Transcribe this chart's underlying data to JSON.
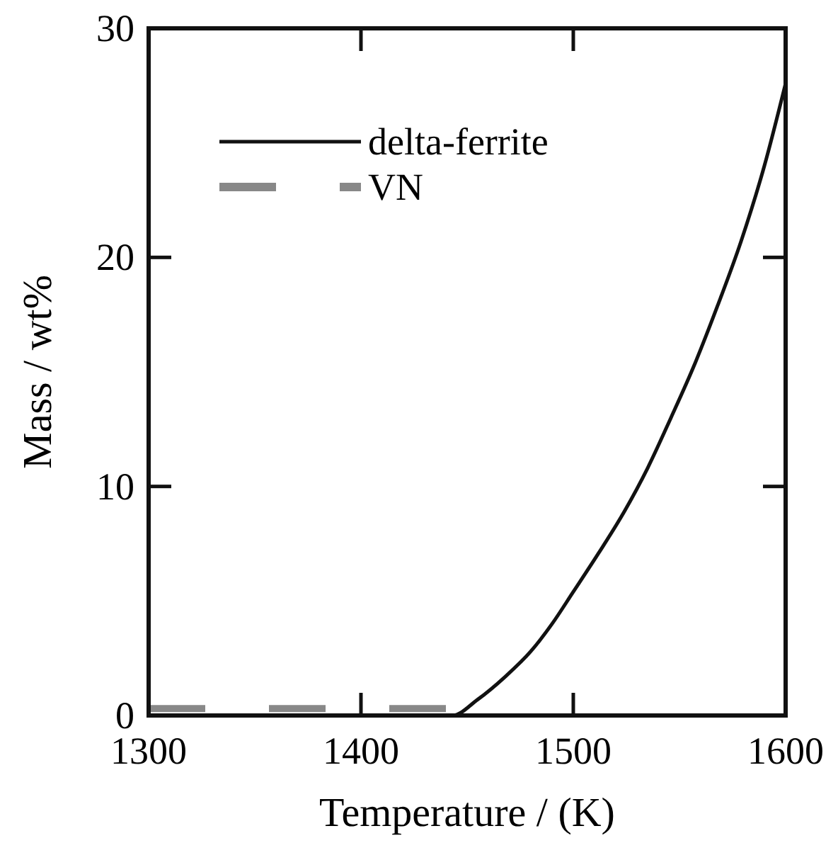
{
  "chart_data": {
    "type": "line",
    "xlabel": "Temperature / (K)",
    "ylabel": "Mass / wt%",
    "xlim": [
      1300,
      1600
    ],
    "xticks": [
      1300,
      1400,
      1500,
      1600
    ],
    "ylim": [
      0,
      30
    ],
    "yticks": [
      0,
      10,
      20,
      30
    ],
    "legend": "top left",
    "grid": false,
    "series": [
      {
        "name": "delta-ferrite",
        "color": "#111111",
        "line_style": "solid",
        "x": [
          1300,
          1443,
          1455,
          1468,
          1480,
          1490,
          1500,
          1512,
          1524,
          1535,
          1546,
          1557,
          1568,
          1579,
          1590,
          1600
        ],
        "values": [
          0,
          0,
          0.7,
          1.7,
          2.8,
          4.0,
          5.4,
          7.1,
          8.9,
          10.8,
          13.0,
          15.3,
          17.9,
          20.7,
          24.0,
          27.6
        ]
      },
      {
        "name": "VN",
        "color": "#888888",
        "line_style": "dashed",
        "x": [
          1300,
          1443
        ],
        "values": [
          0.3,
          0.3
        ]
      }
    ]
  }
}
